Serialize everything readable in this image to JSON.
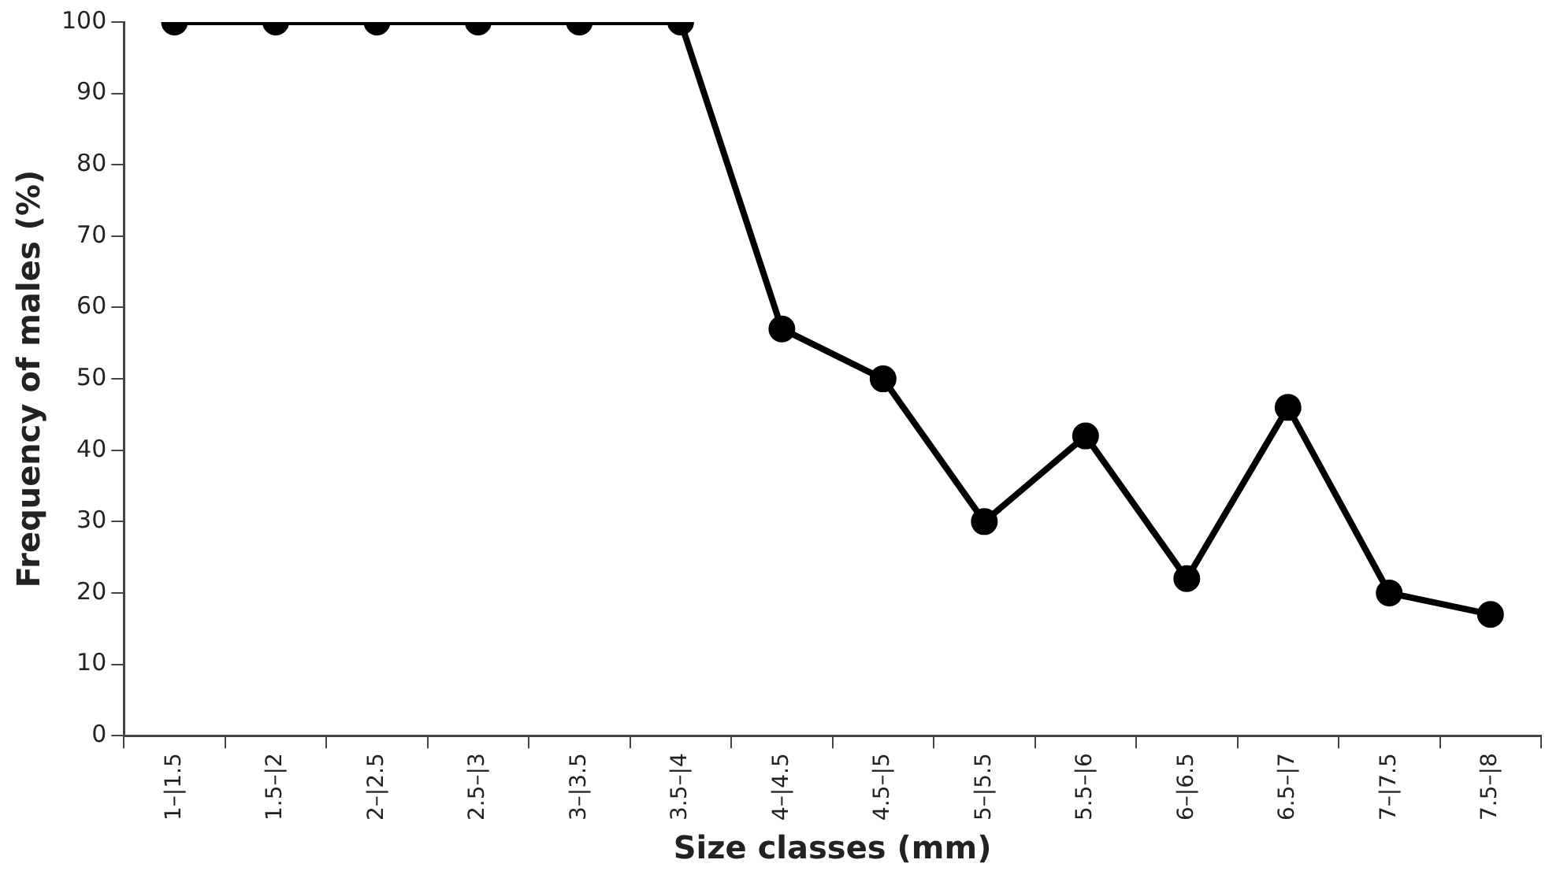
{
  "chart_data": {
    "type": "line",
    "xlabel": "Size classes (mm)",
    "ylabel": "Frequency of males (%)",
    "categories": [
      "1–|1.5",
      "1.5–|2",
      "2–|2.5",
      "2.5–|3",
      "3–|3.5",
      "3.5–|4",
      "4–|4.5",
      "4.5–|5",
      "5–|5.5",
      "5.5–|6",
      "6–|6.5",
      "6.5–|7",
      "7–|7.5",
      "7.5–|8"
    ],
    "series": [
      {
        "color": "#000000",
        "values": [
          100,
          100,
          100,
          100,
          100,
          100,
          57,
          50,
          30,
          42,
          22,
          46,
          20,
          17
        ]
      }
    ],
    "ylim": [
      0,
      100
    ],
    "yticks": [
      0,
      10,
      20,
      30,
      40,
      50,
      60,
      70,
      80,
      90,
      100
    ],
    "grid": false,
    "legend": false,
    "marker": "circle",
    "line_style": "solid"
  }
}
